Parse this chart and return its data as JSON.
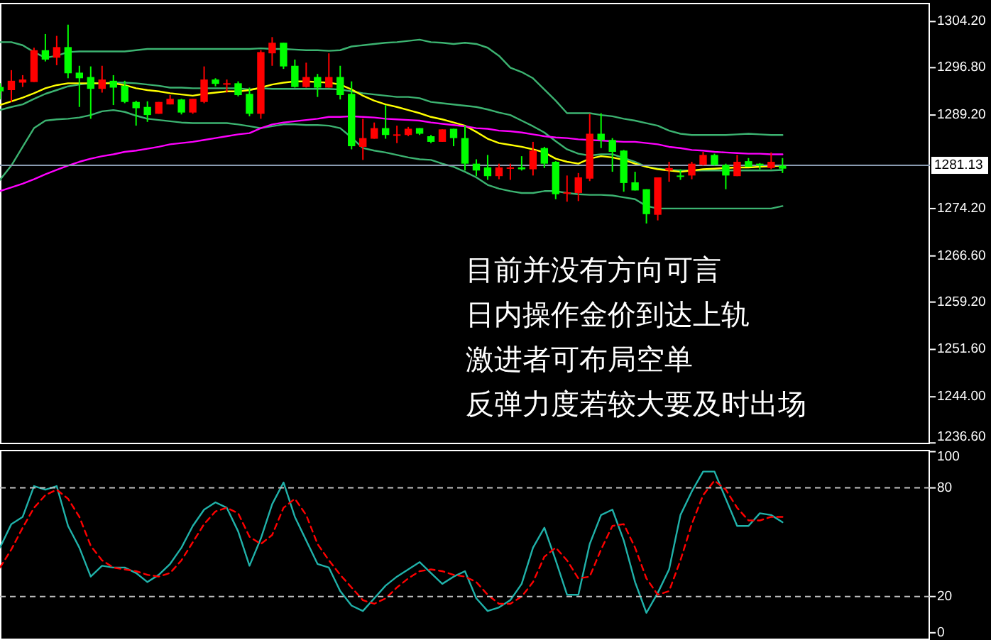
{
  "chart_data": [
    {
      "type": "candlestick",
      "categories": [
        null,
        null,
        null,
        null,
        null,
        null,
        null,
        null,
        null,
        null,
        null,
        null,
        null,
        null,
        null,
        null,
        null,
        null,
        null,
        null,
        null,
        null,
        null,
        null,
        null,
        null,
        null,
        null,
        null,
        null,
        null,
        null,
        null,
        null,
        null,
        null,
        null,
        null,
        null,
        null,
        null,
        null,
        null,
        null,
        null,
        null,
        null,
        null,
        null,
        null,
        null,
        null,
        null,
        null,
        null,
        null,
        null,
        null,
        null,
        null,
        null,
        null,
        null,
        null,
        null,
        null,
        null,
        null,
        null,
        null
      ],
      "ohlc": [
        [
          1293.0,
          1294.3,
          1291.7,
          1293.7
        ],
        [
          1294.7,
          1296.4,
          1291.3,
          1293.2
        ],
        [
          1294.9,
          1295.6,
          1293.7,
          1294.4
        ],
        [
          1299.6,
          1300.0,
          1294.5,
          1294.5
        ],
        [
          1298.1,
          1302.2,
          1297.8,
          1299.6
        ],
        [
          1300.1,
          1301.9,
          1297.2,
          1298.4
        ],
        [
          1295.9,
          1303.7,
          1295.1,
          1300.1
        ],
        [
          1295.1,
          1297.1,
          1290.5,
          1296.0
        ],
        [
          1293.4,
          1297.0,
          1288.6,
          1295.3
        ],
        [
          1294.9,
          1297.1,
          1292.8,
          1293.4
        ],
        [
          1293.6,
          1295.6,
          1290.8,
          1294.7
        ],
        [
          1291.3,
          1294.7,
          1291.1,
          1293.9
        ],
        [
          1290.3,
          1291.5,
          1287.5,
          1291.3
        ],
        [
          1289.2,
          1291.4,
          1288.1,
          1290.5
        ],
        [
          1291.3,
          1291.3,
          1289.4,
          1289.4
        ],
        [
          1291.8,
          1292.4,
          1290.9,
          1290.9
        ],
        [
          1289.6,
          1291.8,
          1289.3,
          1291.7
        ],
        [
          1291.8,
          1291.8,
          1289.4,
          1289.6
        ],
        [
          1294.9,
          1297.0,
          1291.1,
          1291.3
        ],
        [
          1294.2,
          1295.1,
          1293.8,
          1294.9
        ],
        [
          1294.3,
          1294.9,
          1292.8,
          1294.3
        ],
        [
          1292.4,
          1294.6,
          1292.2,
          1294.3
        ],
        [
          1289.4,
          1293.6,
          1289.0,
          1292.6
        ],
        [
          1299.3,
          1299.6,
          1288.6,
          1289.4
        ],
        [
          1300.8,
          1301.7,
          1297.1,
          1299.1
        ],
        [
          1297.0,
          1300.8,
          1296.6,
          1300.8
        ],
        [
          1293.7,
          1298.1,
          1293.6,
          1297.1
        ],
        [
          1295.3,
          1297.6,
          1293.6,
          1293.7
        ],
        [
          1293.6,
          1295.8,
          1292.1,
          1295.3
        ],
        [
          1295.3,
          1299.1,
          1293.6,
          1293.6
        ],
        [
          1292.4,
          1297.1,
          1291.7,
          1295.3
        ],
        [
          1284.2,
          1294.6,
          1283.7,
          1292.6
        ],
        [
          1285.5,
          1288.6,
          1282.0,
          1284.1
        ],
        [
          1287.1,
          1288.0,
          1285.4,
          1285.4
        ],
        [
          1286.0,
          1290.8,
          1285.4,
          1287.1
        ],
        [
          1286.1,
          1287.5,
          1284.7,
          1286.0
        ],
        [
          1287.0,
          1287.3,
          1285.8,
          1286.0
        ],
        [
          1286.2,
          1287.1,
          1286.0,
          1287.1
        ],
        [
          1284.9,
          1286.0,
          1284.7,
          1285.8
        ],
        [
          1286.9,
          1286.9,
          1284.9,
          1284.9
        ],
        [
          1285.5,
          1287.0,
          1284.2,
          1287.0
        ],
        [
          1281.4,
          1287.5,
          1280.3,
          1285.5
        ],
        [
          1280.3,
          1282.1,
          1279.4,
          1281.4
        ],
        [
          1279.4,
          1282.8,
          1278.8,
          1280.8
        ],
        [
          1280.8,
          1281.4,
          1278.9,
          1279.4
        ],
        [
          1280.8,
          1281.4,
          1278.8,
          1280.8
        ],
        [
          1280.5,
          1282.6,
          1280.3,
          1280.8
        ],
        [
          1283.5,
          1284.9,
          1279.5,
          1280.5
        ],
        [
          1281.4,
          1284.1,
          1280.7,
          1283.9
        ],
        [
          1276.5,
          1281.8,
          1275.7,
          1281.7
        ],
        [
          1276.8,
          1279.5,
          1275.3,
          1276.7
        ],
        [
          1279.2,
          1279.9,
          1275.4,
          1276.7
        ],
        [
          1286.2,
          1289.4,
          1278.6,
          1279.0
        ],
        [
          1285.2,
          1289.5,
          1283.9,
          1286.2
        ],
        [
          1283.3,
          1285.5,
          1280.1,
          1285.2
        ],
        [
          1278.3,
          1283.6,
          1276.9,
          1283.5
        ],
        [
          1277.1,
          1280.1,
          1277.1,
          1278.4
        ],
        [
          1273.3,
          1277.3,
          1271.8,
          1277.3
        ],
        [
          1279.2,
          1279.2,
          1272.3,
          1273.2
        ],
        [
          1280.7,
          1281.7,
          1278.5,
          1280.3
        ],
        [
          1279.3,
          1280.5,
          1278.8,
          1279.5
        ],
        [
          1281.4,
          1281.7,
          1278.9,
          1279.5
        ],
        [
          1282.8,
          1283.3,
          1281.1,
          1281.2
        ],
        [
          1281.2,
          1283.0,
          1281.1,
          1282.8
        ],
        [
          1279.5,
          1281.4,
          1277.3,
          1281.2
        ],
        [
          1281.7,
          1282.8,
          1279.4,
          1279.4
        ],
        [
          1280.9,
          1282.3,
          1280.9,
          1281.8
        ],
        [
          1281.1,
          1281.5,
          1280.5,
          1281.4
        ],
        [
          1281.7,
          1283.2,
          1280.5,
          1280.7
        ],
        [
          1280.6,
          1282.3,
          1279.9,
          1281.1
        ]
      ],
      "colors": [
        "#00ff00",
        "#ff0000",
        "#ff0000",
        "#ff0000",
        "#00ff00",
        "#ff0000",
        "#00ff00",
        "#00ff00",
        "#00ff00",
        "#ff0000",
        "#00ff00",
        "#00ff00",
        "#00ff00",
        "#00ff00",
        "#ff0000",
        "#ff0000",
        "#00ff00",
        "#ff0000",
        "#ff0000",
        "#00ff00",
        "#ff0000",
        "#00ff00",
        "#00ff00",
        "#ff0000",
        "#ff0000",
        "#00ff00",
        "#00ff00",
        "#ff0000",
        "#00ff00",
        "#ff0000",
        "#00ff00",
        "#00ff00",
        "#ff0000",
        "#ff0000",
        "#00ff00",
        "#ff0000",
        "#ff0000",
        "#00ff00",
        "#00ff00",
        "#ff0000",
        "#00ff00",
        "#00ff00",
        "#00ff00",
        "#00ff00",
        "#ff0000",
        "#ff0000",
        "#00ff00",
        "#ff0000",
        "#00ff00",
        "#00ff00",
        "#ff0000",
        "#ff0000",
        "#ff0000",
        "#00ff00",
        "#00ff00",
        "#00ff00",
        "#00ff00",
        "#00ff00",
        "#ff0000",
        "#ff0000",
        "#00ff00",
        "#ff0000",
        "#ff0000",
        "#00ff00",
        "#00ff00",
        "#ff0000",
        "#00ff00",
        "#00ff00",
        "#ff0000",
        "#00ff00"
      ],
      "series": [
        {
          "type": "line",
          "color": "#3cb371",
          "values": [
            1300.9,
            1300.9,
            1300.4,
            1299.3,
            1298.4,
            1298.7,
            1299.3,
            1299.4,
            1299.4,
            1299.4,
            1299.4,
            1299.4,
            1299.6,
            1299.8,
            1299.8,
            1299.8,
            1299.8,
            1299.8,
            1299.8,
            1299.8,
            1299.8,
            1299.8,
            1299.8,
            1299.9,
            1299.8,
            1299.8,
            1299.7,
            1299.6,
            1299.6,
            1299.5,
            1299.6,
            1300.2,
            1300.4,
            1300.6,
            1300.8,
            1300.9,
            1301.1,
            1301.3,
            1300.9,
            1300.8,
            1300.6,
            1300.8,
            1300.6,
            1300.0,
            1298.7,
            1296.8,
            1296.1,
            1295.1,
            1293.3,
            1291.5,
            1289.5,
            1289.5,
            1289.5,
            1289.2,
            1289.0,
            1288.6,
            1288.3,
            1287.9,
            1287.5,
            1286.7,
            1286.2,
            1286.0,
            1286.0,
            1286.0,
            1286.0,
            1286.1,
            1286.2,
            1286.1,
            1286.0,
            1286.0
          ]
        },
        {
          "type": "line",
          "color": "#3cb371",
          "values": [
            1290.0,
            1290.5,
            1290.9,
            1291.8,
            1292.6,
            1293.2,
            1293.8,
            1294.1,
            1294.3,
            1294.3,
            1294.4,
            1294.4,
            1294.3,
            1294.1,
            1293.9,
            1293.6,
            1293.6,
            1293.5,
            1293.5,
            1293.5,
            1293.5,
            1293.5,
            1293.3,
            1293.5,
            1293.4,
            1293.4,
            1293.4,
            1293.4,
            1293.4,
            1293.4,
            1293.3,
            1293.0,
            1292.7,
            1292.5,
            1292.3,
            1292.1,
            1292.1,
            1291.9,
            1291.3,
            1291.1,
            1290.9,
            1290.7,
            1290.5,
            1290.1,
            1289.6,
            1289.2,
            1288.3,
            1287.4,
            1286.4,
            1285.0,
            1283.7,
            1283.0,
            1282.7,
            1282.9,
            1282.9,
            1282.3,
            1281.7,
            1280.9,
            1280.6,
            1280.4,
            1280.3,
            1280.3,
            1280.3,
            1280.3,
            1280.3,
            1280.3,
            1280.3,
            1280.3,
            1280.3,
            1280.4
          ]
        },
        {
          "type": "line",
          "color": "#3cb371",
          "values": [
            1278.8,
            1281.1,
            1284.1,
            1287.1,
            1288.3,
            1288.5,
            1288.6,
            1288.8,
            1289.2,
            1289.8,
            1290.0,
            1289.7,
            1289.1,
            1288.6,
            1288.4,
            1288.2,
            1288.0,
            1287.9,
            1287.9,
            1287.9,
            1287.9,
            1287.7,
            1287.4,
            1287.1,
            1287.4,
            1287.7,
            1287.7,
            1287.6,
            1287.6,
            1287.5,
            1287.1,
            1285.6,
            1283.9,
            1283.5,
            1283.2,
            1282.8,
            1282.4,
            1282.1,
            1282.0,
            1281.4,
            1280.9,
            1280.1,
            1279.2,
            1278.0,
            1277.4,
            1277.0,
            1276.7,
            1276.7,
            1277.0,
            1277.0,
            1276.7,
            1276.5,
            1276.4,
            1276.4,
            1276.3,
            1276.0,
            1275.7,
            1274.6,
            1274.2,
            1274.2,
            1274.2,
            1274.2,
            1274.2,
            1274.2,
            1274.2,
            1274.2,
            1274.2,
            1274.2,
            1274.2,
            1274.6
          ]
        },
        {
          "type": "line",
          "color": "#ffff00",
          "values": [
            1290.8,
            1291.4,
            1292.0,
            1292.7,
            1293.5,
            1294.0,
            1294.3,
            1294.3,
            1294.3,
            1294.3,
            1294.3,
            1294.0,
            1293.5,
            1293.2,
            1293.0,
            1292.7,
            1292.5,
            1292.3,
            1292.6,
            1292.8,
            1293.0,
            1293.0,
            1293.2,
            1293.6,
            1294.1,
            1294.4,
            1294.6,
            1294.6,
            1294.5,
            1294.4,
            1294.1,
            1293.3,
            1292.3,
            1291.5,
            1290.9,
            1290.5,
            1290.0,
            1289.5,
            1288.9,
            1288.5,
            1288.0,
            1287.5,
            1286.5,
            1285.4,
            1284.7,
            1284.4,
            1284.1,
            1283.7,
            1283.2,
            1282.2,
            1281.7,
            1281.4,
            1282.2,
            1282.6,
            1282.4,
            1282.0,
            1281.4,
            1280.9,
            1280.5,
            1280.3,
            1280.1,
            1280.3,
            1280.5,
            1280.6,
            1280.7,
            1280.8,
            1280.8,
            1280.9,
            1281.0,
            1281.1
          ]
        },
        {
          "type": "line",
          "color": "#ff00ff",
          "values": [
            1277.0,
            1277.6,
            1278.2,
            1278.9,
            1279.7,
            1280.4,
            1281.1,
            1281.7,
            1282.2,
            1282.6,
            1282.9,
            1283.3,
            1283.5,
            1283.8,
            1284.1,
            1284.5,
            1284.7,
            1284.9,
            1285.2,
            1285.5,
            1285.8,
            1286.1,
            1286.3,
            1287.1,
            1287.7,
            1288.0,
            1288.2,
            1288.4,
            1288.6,
            1288.9,
            1288.9,
            1289.0,
            1288.9,
            1288.8,
            1288.6,
            1288.5,
            1288.4,
            1288.3,
            1288.0,
            1287.8,
            1287.6,
            1287.4,
            1287.1,
            1287.0,
            1286.7,
            1286.6,
            1286.4,
            1286.1,
            1285.8,
            1285.6,
            1285.5,
            1285.3,
            1285.2,
            1285.1,
            1285.0,
            1284.9,
            1284.9,
            1284.7,
            1284.5,
            1284.1,
            1283.9,
            1283.6,
            1283.5,
            1283.3,
            1283.2,
            1283.1,
            1283.0,
            1283.0,
            1282.9,
            1282.9
          ]
        }
      ],
      "ylim": [
        1236.4,
        1307.2
      ],
      "yticks": [
        {
          "value": 1304.2,
          "label": "1304.20"
        },
        {
          "value": 1296.8,
          "label": "1296.80"
        },
        {
          "value": 1289.2,
          "label": "1289.20"
        },
        {
          "value": 1274.2,
          "label": "1274.20"
        },
        {
          "value": 1266.6,
          "label": "1266.60"
        },
        {
          "value": 1259.2,
          "label": "1259.20"
        },
        {
          "value": 1251.6,
          "label": "1251.60"
        },
        {
          "value": 1244.0,
          "label": "1244.00"
        },
        {
          "value": 1236.6,
          "label": "1236.60"
        }
      ],
      "ref_lines": [
        {
          "axis": "y",
          "value": 1281.13,
          "label": "1281.13",
          "color": "#8a9bb0"
        }
      ],
      "annotations": [
        "目前并没有方向可言",
        "日内操作金价到达上轨",
        "激进者可布局空单",
        "反弹力度若较大要及时出场"
      ],
      "tick_labels": "y"
    },
    {
      "type": "line",
      "categories": [
        null,
        null,
        null,
        null,
        null,
        null,
        null,
        null,
        null,
        null,
        null,
        null,
        null,
        null,
        null,
        null,
        null,
        null,
        null,
        null,
        null,
        null,
        null,
        null,
        null,
        null,
        null,
        null,
        null,
        null,
        null,
        null,
        null,
        null,
        null,
        null,
        null,
        null,
        null,
        null,
        null,
        null,
        null,
        null,
        null,
        null,
        null,
        null,
        null,
        null,
        null,
        null,
        null,
        null,
        null,
        null,
        null,
        null,
        null,
        null,
        null,
        null,
        null,
        null,
        null,
        null,
        null,
        null,
        null,
        null
      ],
      "series": [
        {
          "color": "#20b2aa",
          "values": [
            47,
            60,
            64,
            81,
            79,
            81,
            59,
            47,
            31,
            37,
            36,
            36,
            33,
            28,
            32,
            38,
            47,
            59,
            68,
            72,
            69,
            56,
            37,
            52,
            71,
            83,
            64,
            51,
            38,
            36,
            23,
            15,
            12,
            19,
            26,
            31,
            35,
            39,
            33,
            27,
            31,
            34,
            19,
            12,
            14,
            18,
            27,
            47,
            58,
            40,
            21,
            21,
            49,
            65,
            68,
            51,
            28,
            11,
            22,
            35,
            65,
            78,
            89,
            89,
            74,
            59,
            59,
            66,
            65,
            61
          ]
        },
        {
          "color": "#ff0000",
          "line_style": "dashed",
          "values": [
            36,
            46,
            58,
            69,
            76,
            79,
            74,
            64,
            48,
            40,
            36,
            35,
            34,
            32,
            31,
            33,
            40,
            50,
            60,
            67,
            69,
            66,
            53,
            49,
            54,
            69,
            74,
            65,
            49,
            40,
            32,
            25,
            18,
            16,
            19,
            25,
            30,
            34,
            35,
            34,
            32,
            31,
            28,
            21,
            16,
            16,
            20,
            28,
            42,
            47,
            40,
            30,
            31,
            46,
            59,
            60,
            47,
            30,
            21,
            23,
            40,
            60,
            76,
            84,
            79,
            69,
            62,
            62,
            64,
            64
          ]
        }
      ],
      "ylim": [
        -4,
        101
      ],
      "yticks": [
        0,
        20,
        80,
        100
      ],
      "ref_lines": [
        {
          "axis": "y",
          "value": 80,
          "color": "#c0c0c0",
          "line_style": "dashed"
        },
        {
          "axis": "y",
          "value": 20,
          "color": "#c0c0c0",
          "line_style": "dashed"
        }
      ],
      "tick_labels": "y"
    }
  ]
}
